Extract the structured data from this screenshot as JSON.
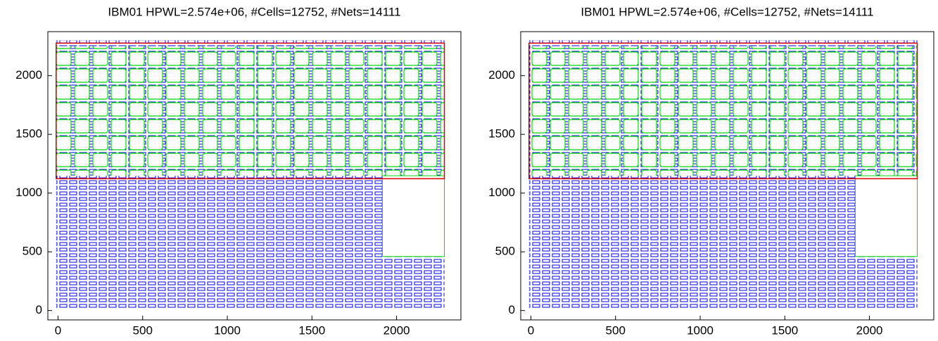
{
  "chart_data": [
    {
      "type": "placement",
      "title": "IBM01 HPWL=2.574e+06, #Cells=12752, #Nets=14111",
      "xlim": [
        -60,
        2380
      ],
      "ylim": [
        -80,
        2375
      ],
      "xticks": [
        0,
        500,
        1000,
        1500,
        2000
      ],
      "yticks": [
        0,
        500,
        1000,
        1500,
        2000
      ]
    },
    {
      "type": "placement",
      "title": "IBM01 HPWL=2.574e+06, #Cells=12752, #Nets=14111",
      "xlim": [
        -60,
        2380
      ],
      "ylim": [
        -80,
        2375
      ],
      "xticks": [
        0,
        500,
        1000,
        1500,
        2000
      ],
      "yticks": [
        0,
        500,
        1000,
        1500,
        2000
      ]
    }
  ]
}
